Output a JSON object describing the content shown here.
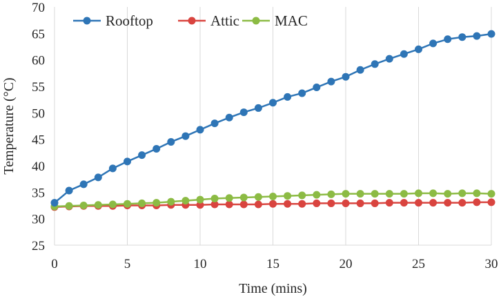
{
  "chart_data": {
    "type": "line",
    "title": "",
    "xlabel": "Time (mins)",
    "ylabel": "Temperature (°C)",
    "xlim": [
      0,
      30
    ],
    "ylim": [
      25,
      70
    ],
    "x_ticks": [
      0,
      5,
      10,
      15,
      20,
      25,
      30
    ],
    "y_ticks": [
      25,
      30,
      35,
      40,
      45,
      50,
      55,
      60,
      65,
      70
    ],
    "grid": {
      "horizontal": false,
      "vertical": true
    },
    "legend": {
      "placement": "top-left"
    },
    "x": [
      0,
      1,
      2,
      3,
      4,
      5,
      6,
      7,
      8,
      9,
      10,
      11,
      12,
      13,
      14,
      15,
      16,
      17,
      18,
      19,
      20,
      21,
      22,
      23,
      24,
      25,
      26,
      27,
      28,
      29,
      30
    ],
    "series": [
      {
        "name": "Rooftop",
        "color": "#2E75B6",
        "values": [
          33.0,
          35.3,
          36.5,
          37.8,
          39.5,
          40.8,
          42.0,
          43.2,
          44.5,
          45.6,
          46.8,
          48.0,
          49.1,
          50.1,
          50.9,
          51.9,
          53.0,
          53.7,
          54.8,
          55.9,
          56.8,
          58.1,
          59.2,
          60.2,
          61.1,
          62.0,
          63.1,
          63.9,
          64.3,
          64.5,
          64.9
        ]
      },
      {
        "name": "Attic",
        "color": "#D9443F",
        "values": [
          32.2,
          32.3,
          32.4,
          32.4,
          32.4,
          32.5,
          32.5,
          32.5,
          32.6,
          32.6,
          32.6,
          32.7,
          32.7,
          32.7,
          32.7,
          32.8,
          32.8,
          32.8,
          32.9,
          32.9,
          32.9,
          32.9,
          32.9,
          33.0,
          33.0,
          33.0,
          33.0,
          33.0,
          33.0,
          33.1,
          33.1
        ]
      },
      {
        "name": "MAC",
        "color": "#8CBB44",
        "values": [
          32.3,
          32.4,
          32.5,
          32.6,
          32.7,
          32.8,
          32.9,
          33.0,
          33.2,
          33.4,
          33.6,
          33.8,
          33.9,
          34.0,
          34.1,
          34.2,
          34.3,
          34.4,
          34.5,
          34.6,
          34.7,
          34.7,
          34.7,
          34.7,
          34.7,
          34.8,
          34.8,
          34.7,
          34.8,
          34.8,
          34.7
        ]
      }
    ]
  }
}
